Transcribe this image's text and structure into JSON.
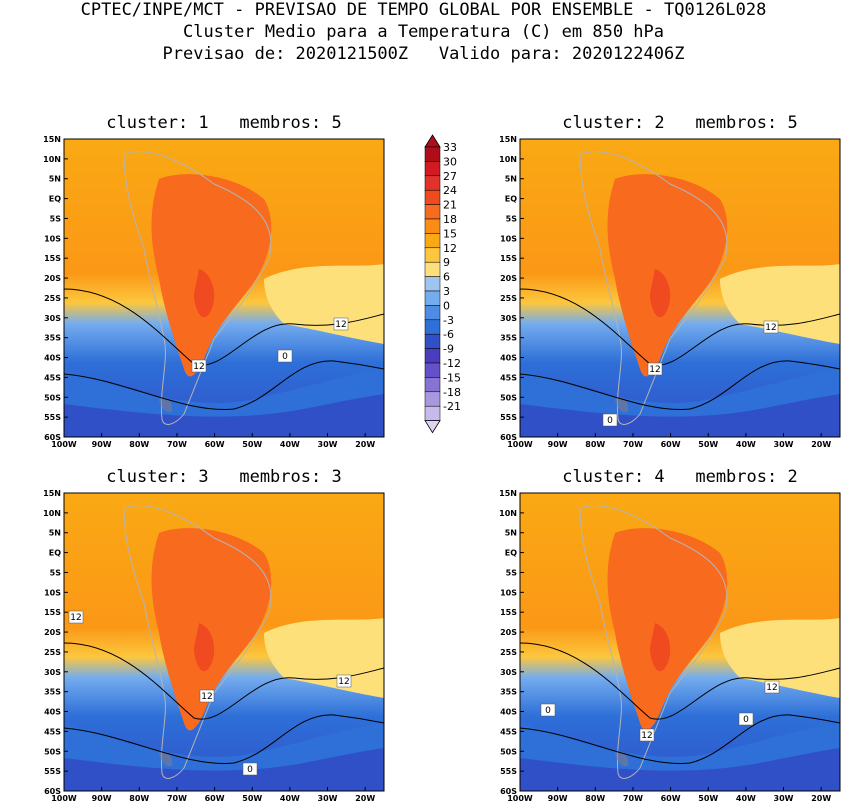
{
  "header": {
    "line1": "CPTEC/INPE/MCT - PREVISAO DE TEMPO GLOBAL POR ENSEMBLE - TQ0126L028",
    "line2": "Cluster Medio para a Temperatura (C) em 850 hPa",
    "line3": "Previsao de: 2020121500Z   Valido para: 2020122406Z"
  },
  "lat_labels": [
    "15N",
    "10N",
    "5N",
    "EQ",
    "5S",
    "10S",
    "15S",
    "20S",
    "25S",
    "30S",
    "35S",
    "40S",
    "45S",
    "50S",
    "55S",
    "60S"
  ],
  "lon_labels": [
    "100W",
    "90W",
    "80W",
    "70W",
    "60W",
    "50W",
    "40W",
    "30W",
    "20W"
  ],
  "panels": [
    {
      "title": "cluster: 1   membros: 5",
      "contour_labels": [
        "12",
        "12",
        "0"
      ]
    },
    {
      "title": "cluster: 2   membros: 5",
      "contour_labels": [
        "12",
        "12",
        "0"
      ]
    },
    {
      "title": "cluster: 3   membros: 3",
      "contour_labels": [
        "12",
        "12",
        "12",
        "0"
      ]
    },
    {
      "title": "cluster: 4   membros: 2",
      "contour_labels": [
        "12",
        "12",
        "0",
        "0"
      ]
    }
  ],
  "colorbar": {
    "labels": [
      "33",
      "30",
      "27",
      "24",
      "21",
      "18",
      "15",
      "12",
      "9",
      "6",
      "3",
      "0",
      "-3",
      "-6",
      "-9",
      "-12",
      "-15",
      "-18",
      "-21"
    ],
    "colors": [
      "#b00d1a",
      "#d11a22",
      "#e2322a",
      "#f04a20",
      "#f86a1e",
      "#fb8c16",
      "#faa914",
      "#fcc73e",
      "#fde07a",
      "#9ec4f2",
      "#74acee",
      "#4d8ee4",
      "#2e6fd8",
      "#3050c8",
      "#4a3dc0",
      "#6450c8",
      "#8872d4",
      "#a898e0",
      "#c6baec"
    ],
    "top_color": "#b00d1a",
    "bottom_color": "#ddd4f2"
  }
}
